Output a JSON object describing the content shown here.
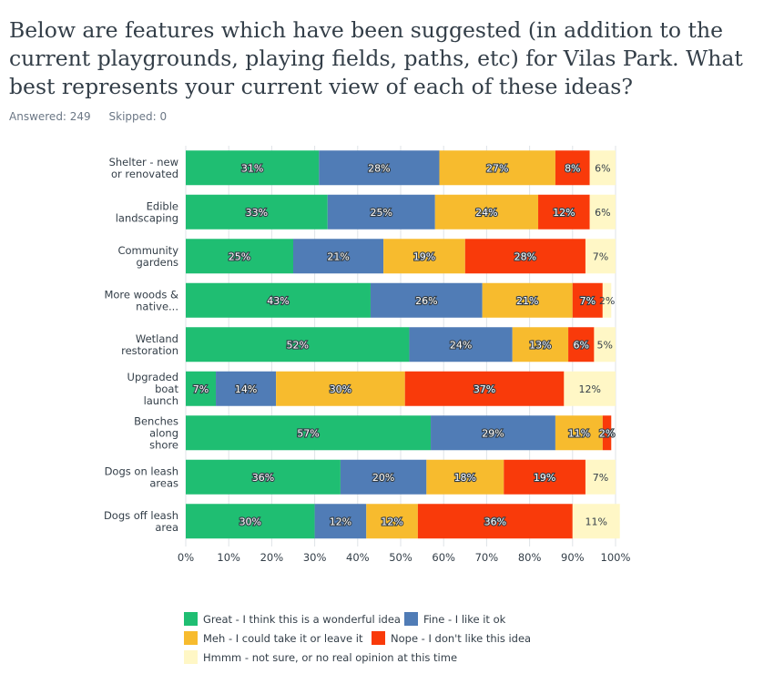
{
  "question": {
    "title": "Below are features which have been suggested (in addition to the current playgrounds, playing fields, paths, etc) for Vilas Park. What best represents your current view of each of these ideas?",
    "answered": "Answered: 249",
    "skipped": "Skipped: 0"
  },
  "chart_data": {
    "type": "bar",
    "orientation": "horizontal",
    "stacked": true,
    "title": "",
    "xlim": [
      0,
      100
    ],
    "x_ticks": [
      "0%",
      "10%",
      "20%",
      "30%",
      "40%",
      "50%",
      "60%",
      "70%",
      "80%",
      "90%",
      "100%"
    ],
    "grid": true,
    "legend_position": "bottom",
    "categories": [
      [
        "Shelter - new",
        "or renovated"
      ],
      [
        "Edible",
        "landscaping"
      ],
      [
        "Community",
        "gardens"
      ],
      [
        "More woods &",
        "native..."
      ],
      [
        "Wetland",
        "restoration"
      ],
      [
        "Upgraded",
        "boat",
        "launch"
      ],
      [
        "Benches",
        "along",
        "shore"
      ],
      [
        "Dogs on leash",
        "areas"
      ],
      [
        "Dogs off leash",
        "area"
      ]
    ],
    "series": [
      {
        "name": "Great - I think this is a wonderful idea",
        "color": "#1fbe72",
        "values": [
          31,
          33,
          25,
          43,
          52,
          7,
          57,
          36,
          30
        ]
      },
      {
        "name": "Fine - I like it ok",
        "color": "#507cb6",
        "values": [
          28,
          25,
          21,
          26,
          24,
          14,
          29,
          20,
          12
        ]
      },
      {
        "name": "Meh - I could take it or leave it",
        "color": "#f7bb2e",
        "values": [
          27,
          24,
          19,
          21,
          13,
          30,
          11,
          18,
          12
        ]
      },
      {
        "name": "Nope - I don't like this idea",
        "color": "#f93a0a",
        "values": [
          8,
          12,
          28,
          7,
          6,
          37,
          2,
          19,
          36
        ]
      },
      {
        "name": "Hmmm - not sure, or no real opinion at this time",
        "color": "#fff7c6",
        "values": [
          6,
          6,
          7,
          2,
          5,
          12,
          0,
          7,
          11
        ]
      }
    ],
    "data_labels": [
      [
        "31%",
        "28%",
        "27%",
        "8%",
        "6%"
      ],
      [
        "33%",
        "25%",
        "24%",
        "12%",
        "6%"
      ],
      [
        "25%",
        "21%",
        "19%",
        "28%",
        "7%"
      ],
      [
        "43%",
        "26%",
        "21%",
        "7%",
        "2%"
      ],
      [
        "52%",
        "24%",
        "13%",
        "6%",
        "5%"
      ],
      [
        "7%",
        "14%",
        "30%",
        "37%",
        "12%"
      ],
      [
        "57%",
        "29%",
        "11%",
        "2%",
        ""
      ],
      [
        "36%",
        "20%",
        "18%",
        "19%",
        "7%"
      ],
      [
        "30%",
        "12%",
        "12%",
        "36%",
        "11%"
      ]
    ]
  }
}
